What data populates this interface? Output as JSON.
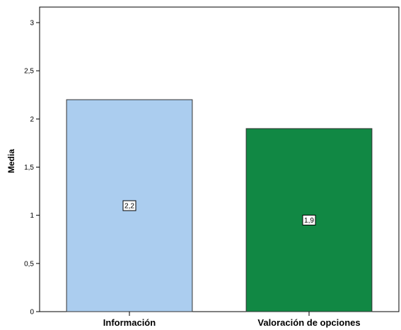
{
  "chart_data": {
    "type": "bar",
    "categories": [
      "Información",
      "Valoración de opciones"
    ],
    "values": [
      2.2,
      1.9
    ],
    "data_labels": [
      "2,2",
      "1,9"
    ],
    "colors": [
      "#abcdef",
      "#118844"
    ],
    "title": "",
    "xlabel": "",
    "ylabel": "Media",
    "ylim": [
      0,
      3
    ],
    "y_ticks": [
      0,
      0.5,
      1,
      1.5,
      2,
      2.5,
      3
    ],
    "y_tick_labels": [
      "0",
      "0,5",
      "1",
      "1,5",
      "2",
      "2,5",
      "3"
    ],
    "grid": false,
    "legend": "none"
  }
}
